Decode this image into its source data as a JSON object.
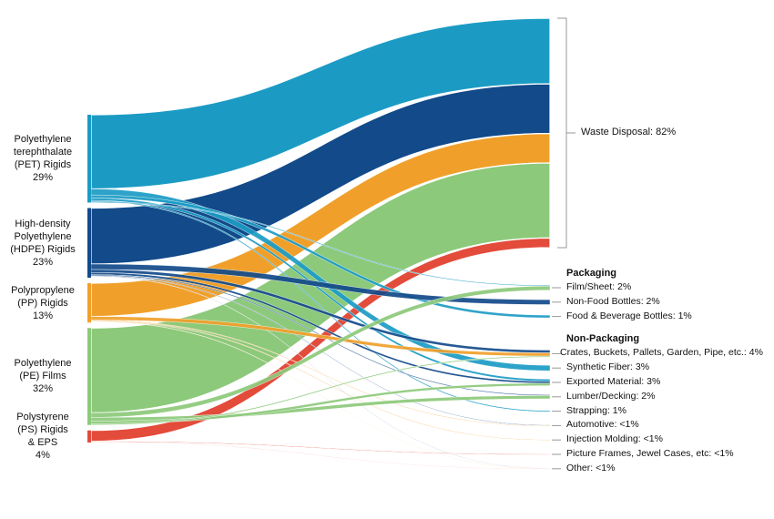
{
  "chart_data": {
    "type": "sankey",
    "sources": [
      {
        "id": "pet",
        "label": "Polyethylene\nterephthalate\n(PET) Rigids\n29%",
        "value": 29,
        "color": "#1b9bc4"
      },
      {
        "id": "hdpe",
        "label": "High-density\nPolyethylene\n(HDPE) Rigids\n23%",
        "value": 23,
        "color": "#124a8a"
      },
      {
        "id": "pp",
        "label": "Polypropylene\n(PP) Rigids\n13%",
        "value": 13,
        "color": "#f0a02a"
      },
      {
        "id": "pe",
        "label": "Polyethylene\n(PE) Films\n32%",
        "value": 32,
        "color": "#8cc97a"
      },
      {
        "id": "ps",
        "label": "Polystyrene\n(PS) Rigids\n& EPS\n4%",
        "value": 4,
        "color": "#e34b3a"
      }
    ],
    "waste": {
      "label": "Waste Disposal: 82%",
      "value": 82
    },
    "groups": [
      {
        "title": "Packaging",
        "targets": [
          {
            "id": "film",
            "label": "Film/Sheet: 2%",
            "value": 2
          },
          {
            "id": "nfb",
            "label": "Non-Food Bottles: 2%",
            "value": 2
          },
          {
            "id": "fbb",
            "label": "Food & Beverage Bottles: 1%",
            "value": 1
          }
        ]
      },
      {
        "title": "Non-Packaging",
        "targets": [
          {
            "id": "crates",
            "label": "Crates, Buckets, Pallets, Garden, Pipe, etc.: 4%",
            "value": 4
          },
          {
            "id": "fiber",
            "label": "Synthetic Fiber: 3%",
            "value": 3
          },
          {
            "id": "export",
            "label": "Exported Material: 3%",
            "value": 3
          },
          {
            "id": "lumber",
            "label": "Lumber/Decking: 2%",
            "value": 2
          },
          {
            "id": "strap",
            "label": "Strapping: 1%",
            "value": 1
          },
          {
            "id": "auto",
            "label": "Automotive: <1%",
            "value": 0.3
          },
          {
            "id": "inj",
            "label": "Injection Molding: <1%",
            "value": 0.3
          },
          {
            "id": "frames",
            "label": "Picture Frames, Jewel Cases, etc: <1%",
            "value": 0.3
          },
          {
            "id": "other",
            "label": "Other: <1%",
            "value": 0.2
          }
        ]
      }
    ],
    "flows": [
      {
        "source": "pet",
        "target": "waste",
        "value": 24.5
      },
      {
        "source": "pet",
        "target": "fiber",
        "value": 2.0
      },
      {
        "source": "pet",
        "target": "fbb",
        "value": 1.0
      },
      {
        "source": "pet",
        "target": "export",
        "value": 0.8
      },
      {
        "source": "pet",
        "target": "strap",
        "value": 0.4
      },
      {
        "source": "pet",
        "target": "film",
        "value": 0.3
      },
      {
        "source": "hdpe",
        "target": "waste",
        "value": 18.5
      },
      {
        "source": "hdpe",
        "target": "nfb",
        "value": 1.8
      },
      {
        "source": "hdpe",
        "target": "crates",
        "value": 1.0
      },
      {
        "source": "hdpe",
        "target": "export",
        "value": 0.7
      },
      {
        "source": "hdpe",
        "target": "lumber",
        "value": 0.3
      },
      {
        "source": "hdpe",
        "target": "auto",
        "value": 0.2
      },
      {
        "source": "hdpe",
        "target": "other",
        "value": 0.1
      },
      {
        "source": "pp",
        "target": "waste",
        "value": 11.0
      },
      {
        "source": "pp",
        "target": "crates",
        "value": 1.2
      },
      {
        "source": "pp",
        "target": "auto",
        "value": 0.2
      },
      {
        "source": "pp",
        "target": "inj",
        "value": 0.2
      },
      {
        "source": "pp",
        "target": "other",
        "value": 0.1
      },
      {
        "source": "pe",
        "target": "waste",
        "value": 28.0
      },
      {
        "source": "pe",
        "target": "film",
        "value": 1.5
      },
      {
        "source": "pe",
        "target": "lumber",
        "value": 1.2
      },
      {
        "source": "pe",
        "target": "export",
        "value": 0.9
      },
      {
        "source": "pe",
        "target": "crates",
        "value": 0.4
      },
      {
        "source": "ps",
        "target": "waste",
        "value": 3.6
      },
      {
        "source": "ps",
        "target": "frames",
        "value": 0.2
      },
      {
        "source": "ps",
        "target": "other",
        "value": 0.1
      }
    ]
  }
}
